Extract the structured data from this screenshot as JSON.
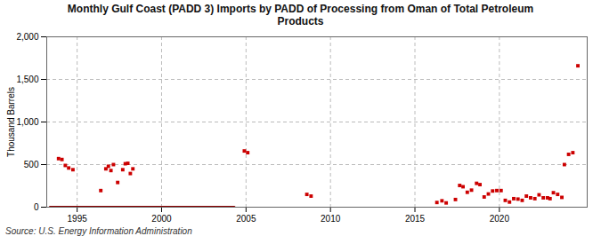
{
  "chart_data": {
    "type": "scatter",
    "title": "Monthly Gulf Coast (PADD 3) Imports by PADD of Processing from Oman of Total Petroleum\nProducts",
    "ylabel": "Thousand Barrels",
    "annotations": [
      "Source: U.S. Energy Information Administration"
    ],
    "xlim": [
      1993.2,
      2025.2
    ],
    "xticks": [
      1995,
      2000,
      2005,
      2010,
      2015,
      2020
    ],
    "ylim": [
      0,
      2000
    ],
    "yticks": [
      0,
      500,
      {
        "value": 1000,
        "label": "1,000"
      },
      {
        "value": 1500,
        "label": "1,500"
      },
      {
        "value": 2000,
        "label": "2,000"
      }
    ],
    "grid": true,
    "series": [
      {
        "type": "line",
        "color": "#8b0000",
        "x": [
          1993.4,
          2004.3
        ],
        "values": [
          0,
          0
        ]
      },
      {
        "type": "scatter",
        "color": "#cc0000",
        "marker": "square",
        "x": [
          1993.9,
          1994.1,
          1994.3,
          1994.5,
          1994.75,
          1996.4,
          1996.7,
          1996.85,
          1997.0,
          1997.15,
          1997.4,
          1997.7,
          1997.85,
          1998.0,
          1998.15,
          1998.3,
          2004.9,
          2005.1,
          2008.6,
          2008.85,
          2016.3,
          2016.6,
          2016.85,
          2017.4,
          2017.65,
          2017.85,
          2018.1,
          2018.35,
          2018.65,
          2018.85,
          2019.1,
          2019.35,
          2019.6,
          2019.85,
          2020.1,
          2020.35,
          2020.6,
          2020.85,
          2021.1,
          2021.35,
          2021.6,
          2021.85,
          2022.1,
          2022.35,
          2022.6,
          2022.85,
          2023.0,
          2023.2,
          2023.45,
          2023.7,
          2023.85,
          2024.1,
          2024.35,
          2024.65
        ],
        "values": [
          570,
          560,
          490,
          460,
          440,
          195,
          450,
          480,
          430,
          500,
          290,
          440,
          510,
          515,
          395,
          450,
          660,
          640,
          150,
          130,
          55,
          75,
          50,
          90,
          255,
          240,
          175,
          200,
          280,
          265,
          120,
          155,
          190,
          195,
          195,
          80,
          60,
          100,
          95,
          80,
          130,
          110,
          100,
          145,
          110,
          110,
          100,
          170,
          150,
          115,
          500,
          620,
          640,
          1660
        ]
      }
    ]
  }
}
